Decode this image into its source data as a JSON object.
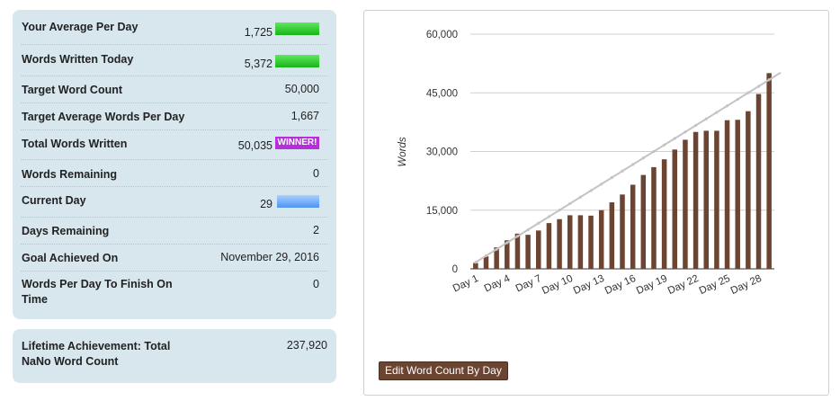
{
  "stats": {
    "avg_per_day": {
      "label": "Your Average Per Day",
      "value": "1,725"
    },
    "written_today": {
      "label": "Words Written Today",
      "value": "5,372"
    },
    "target_count": {
      "label": "Target Word Count",
      "value": "50,000"
    },
    "target_avg": {
      "label": "Target Average Words Per Day",
      "value": "1,667"
    },
    "total_written": {
      "label": "Total Words Written",
      "value": "50,035",
      "badge": "WINNER!"
    },
    "remaining": {
      "label": "Words Remaining",
      "value": "0"
    },
    "current_day": {
      "label": "Current Day",
      "value": "29",
      "progress": 0.967
    },
    "days_remaining": {
      "label": "Days Remaining",
      "value": "2"
    },
    "goal_achieved": {
      "label": "Goal Achieved On",
      "value": "November 29, 2016"
    },
    "per_day_to_finish": {
      "label": "Words Per Day To Finish On Time",
      "value": "0"
    }
  },
  "lifetime": {
    "label": "Lifetime Achievement: Total NaNo Word Count",
    "value": "237,920"
  },
  "edit_button": "Edit Word Count By Day",
  "colors": {
    "panel": "#d8e6ed",
    "bar": "#6b4531",
    "target_line": "#c4c4c4",
    "winner": "#b530d8"
  },
  "chart_data": {
    "type": "bar",
    "ylabel": "Words",
    "ylim": [
      0,
      60000
    ],
    "yticks": [
      0,
      15000,
      30000,
      45000,
      60000
    ],
    "ytick_labels": [
      "0",
      "15,000",
      "30,000",
      "45,000",
      "60,000"
    ],
    "categories": [
      "Day 1",
      "Day 2",
      "Day 3",
      "Day 4",
      "Day 5",
      "Day 6",
      "Day 7",
      "Day 8",
      "Day 9",
      "Day 10",
      "Day 11",
      "Day 12",
      "Day 13",
      "Day 14",
      "Day 15",
      "Day 16",
      "Day 17",
      "Day 18",
      "Day 19",
      "Day 20",
      "Day 21",
      "Day 22",
      "Day 23",
      "Day 24",
      "Day 25",
      "Day 26",
      "Day 27",
      "Day 28",
      "Day 29"
    ],
    "xtick_labels": [
      "Day 1",
      "Day 4",
      "Day 7",
      "Day 10",
      "Day 13",
      "Day 16",
      "Day 19",
      "Day 22",
      "Day 25",
      "Day 28"
    ],
    "series": [
      {
        "type": "bar",
        "values": [
          1500,
          3200,
          5500,
          7300,
          9000,
          8700,
          9800,
          11700,
          12700,
          13700,
          13700,
          13600,
          15000,
          17000,
          19000,
          21500,
          24000,
          26000,
          28000,
          30500,
          33000,
          35000,
          35300,
          35300,
          38000,
          38100,
          40300,
          44700,
          50035
        ]
      },
      {
        "type": "line",
        "values": [
          1667,
          3333,
          5000,
          6667,
          8333,
          10000,
          11667,
          13333,
          15000,
          16667,
          18333,
          20000,
          21667,
          23333,
          25000,
          26667,
          28333,
          30000,
          31667,
          33333,
          35000,
          36667,
          38333,
          40000,
          41667,
          43333,
          45000,
          46667,
          48333
        ]
      }
    ]
  }
}
